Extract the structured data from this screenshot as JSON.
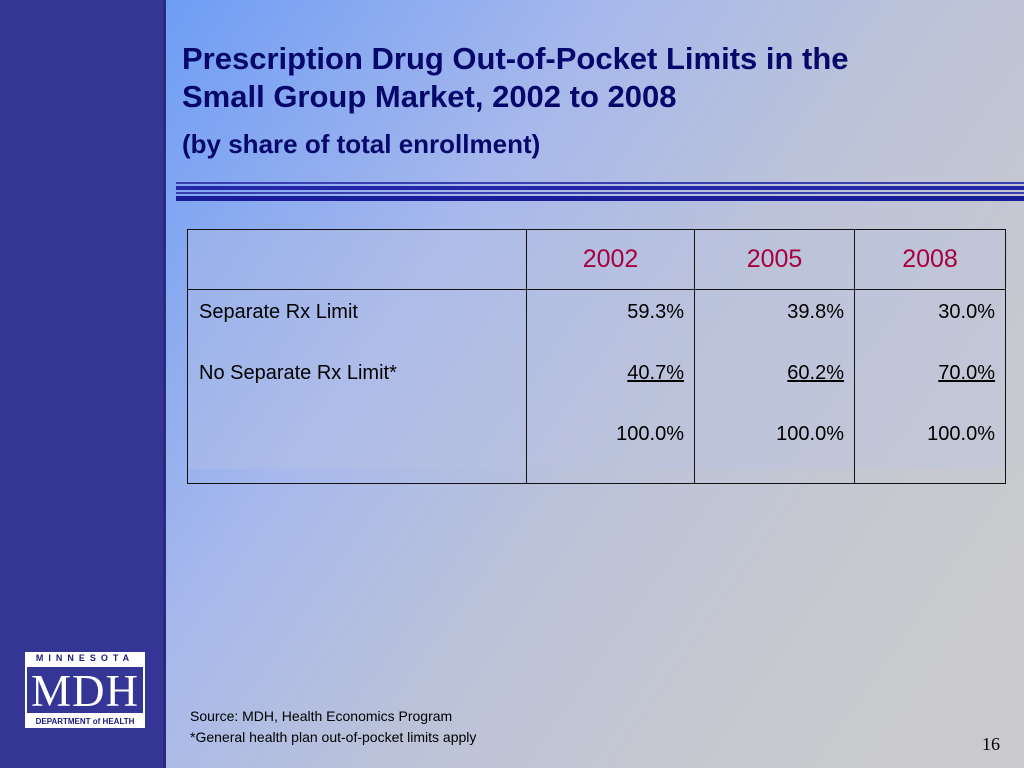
{
  "title": {
    "line1": "Prescription Drug Out-of-Pocket Limits in the",
    "line2": "Small Group Market, 2002 to 2008",
    "subtitle": "(by share of total enrollment)"
  },
  "table": {
    "columns": [
      "",
      "2002",
      "2005",
      "2008"
    ],
    "row_labels": [
      "Separate Rx Limit",
      "No Separate Rx Limit*",
      ""
    ],
    "values": {
      "y2002": [
        "59.3%",
        "40.7%",
        "100.0%"
      ],
      "y2005": [
        "39.8%",
        "60.2%",
        "100.0%"
      ],
      "y2008": [
        "30.0%",
        "70.0%",
        "100.0%"
      ]
    },
    "header_color": "#a8003f"
  },
  "logo": {
    "top": "MINNESOTA",
    "main": "MDH",
    "bottom": "DEPARTMENT of HEALTH"
  },
  "footnote": {
    "source": "Source:  MDH, Health Economics Program",
    "note": "*General health plan out-of-pocket limits apply"
  },
  "page_number": "16",
  "colors": {
    "sidebar": "#343594",
    "title": "#06076a",
    "rule": "#1a1d9a"
  }
}
